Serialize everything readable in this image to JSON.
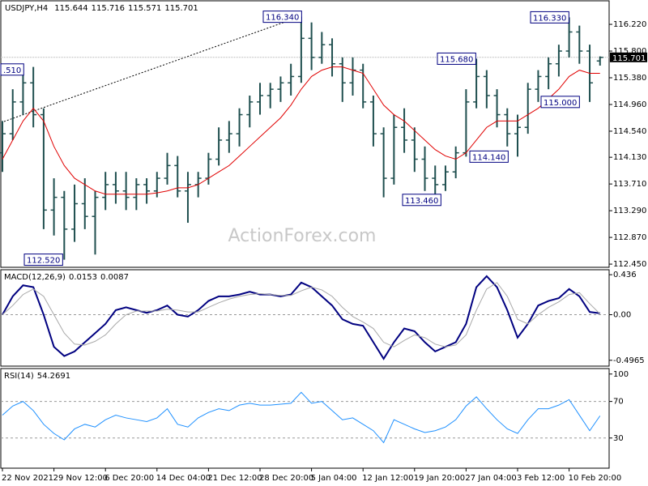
{
  "chart_data": [
    {
      "type": "ohlc",
      "symbol": "USDJPY,H4",
      "header_values": [
        115.644,
        115.716,
        115.571,
        115.701
      ],
      "watermark": "ActionForex.com",
      "color": "#1f4f4f",
      "categories": [
        "22 Nov 2021",
        null,
        null,
        null,
        null,
        "29 Nov 12:00",
        null,
        null,
        null,
        null,
        "6 Dec 20:00",
        null,
        null,
        null,
        null,
        "14 Dec 04:00",
        null,
        null,
        null,
        null,
        "21 Dec 12:00",
        null,
        null,
        null,
        null,
        "28 Dec 20:00",
        null,
        null,
        null,
        null,
        "5 Jan 04:00",
        null,
        null,
        null,
        null,
        "12 Jan 12:00",
        null,
        null,
        null,
        null,
        "19 Jan 20:00",
        null,
        null,
        null,
        null,
        "27 Jan 04:00",
        null,
        null,
        null,
        null,
        "3 Feb 12:00",
        null,
        null,
        null,
        null,
        "10 Feb 20:00",
        null,
        null,
        null
      ],
      "open": [
        114.2,
        114.5,
        115.0,
        115.3,
        114.8,
        113.3,
        113.5,
        113.0,
        113.4,
        113.2,
        113.5,
        113.7,
        113.6,
        113.5,
        113.7,
        113.6,
        113.8,
        114.0,
        113.6,
        113.7,
        113.8,
        114.1,
        114.4,
        114.5,
        114.8,
        115.0,
        115.1,
        115.2,
        115.3,
        115.4,
        116.0,
        115.7,
        115.9,
        115.6,
        115.3,
        115.5,
        115.0,
        114.5,
        113.8,
        114.6,
        114.4,
        114.1,
        113.8,
        113.7,
        113.9,
        114.2,
        115.0,
        115.4,
        115.1,
        114.8,
        114.5,
        114.6,
        115.2,
        115.4,
        115.6,
        115.8,
        116.1,
        115.8,
        115.644
      ],
      "high": [
        114.7,
        115.2,
        115.5,
        115.55,
        114.9,
        113.8,
        113.6,
        113.7,
        113.8,
        113.6,
        113.9,
        113.9,
        113.9,
        113.8,
        113.8,
        113.9,
        114.2,
        114.15,
        113.9,
        113.9,
        114.2,
        114.6,
        114.7,
        114.9,
        115.1,
        115.3,
        115.3,
        115.4,
        115.6,
        116.34,
        116.25,
        116.1,
        116.0,
        115.7,
        115.7,
        115.6,
        115.1,
        114.6,
        114.8,
        114.9,
        114.6,
        114.3,
        114.0,
        114.0,
        114.3,
        115.2,
        115.68,
        115.5,
        115.2,
        114.9,
        114.8,
        115.3,
        115.5,
        115.7,
        115.9,
        116.33,
        116.2,
        115.9,
        115.716
      ],
      "low": [
        113.9,
        114.4,
        114.8,
        114.6,
        113.0,
        112.9,
        112.52,
        112.8,
        113.0,
        112.6,
        113.3,
        113.4,
        113.3,
        113.3,
        113.4,
        113.5,
        113.7,
        113.5,
        113.1,
        113.5,
        113.7,
        114.0,
        114.2,
        114.3,
        114.6,
        114.8,
        114.9,
        115.0,
        115.1,
        115.3,
        115.5,
        115.6,
        115.4,
        115.0,
        115.1,
        114.9,
        114.3,
        113.5,
        113.7,
        114.2,
        113.9,
        113.6,
        113.46,
        113.6,
        113.8,
        114.14,
        114.9,
        114.9,
        114.6,
        114.3,
        114.14,
        114.5,
        115.0,
        115.2,
        115.4,
        115.7,
        115.6,
        115.0,
        115.571
      ],
      "close": [
        114.5,
        115.0,
        115.3,
        114.8,
        113.3,
        113.5,
        113.0,
        113.4,
        113.2,
        113.5,
        113.7,
        113.6,
        113.5,
        113.7,
        113.6,
        113.8,
        114.0,
        113.6,
        113.7,
        113.8,
        114.1,
        114.4,
        114.5,
        114.8,
        115.0,
        115.1,
        115.2,
        115.3,
        115.4,
        116.0,
        115.7,
        115.9,
        115.6,
        115.3,
        115.5,
        115.0,
        114.5,
        113.8,
        114.6,
        114.4,
        114.1,
        113.8,
        113.7,
        113.9,
        114.2,
        115.0,
        115.4,
        115.1,
        114.8,
        114.5,
        114.6,
        115.2,
        115.4,
        115.6,
        115.8,
        116.1,
        115.8,
        115.3,
        115.701
      ],
      "ma": {
        "color": "#e00000",
        "values": [
          114.1,
          114.4,
          114.7,
          114.9,
          114.7,
          114.3,
          114.0,
          113.8,
          113.7,
          113.6,
          113.55,
          113.55,
          113.55,
          113.55,
          113.55,
          113.57,
          113.6,
          113.65,
          113.65,
          113.7,
          113.8,
          113.9,
          114.0,
          114.15,
          114.3,
          114.45,
          114.6,
          114.75,
          114.95,
          115.2,
          115.4,
          115.5,
          115.55,
          115.55,
          115.5,
          115.45,
          115.2,
          114.95,
          114.8,
          114.7,
          114.55,
          114.4,
          114.25,
          114.15,
          114.1,
          114.2,
          114.4,
          114.6,
          114.7,
          114.7,
          114.7,
          114.8,
          114.9,
          115.05,
          115.2,
          115.4,
          115.5,
          115.45,
          115.45
        ]
      },
      "ylim": [
        112.4,
        116.59
      ],
      "yticks": [
        {
          "value": 116.22,
          "label": "116.220"
        },
        {
          "value": 115.8,
          "label": "115.800"
        },
        {
          "value": 115.38,
          "label": "115.380"
        },
        {
          "value": 114.96,
          "label": "114.960"
        },
        {
          "value": 114.54,
          "label": "114.540"
        },
        {
          "value": 114.13,
          "label": "114.130"
        },
        {
          "value": 113.71,
          "label": "113.710"
        },
        {
          "value": 113.29,
          "label": "113.290"
        },
        {
          "value": 112.87,
          "label": "112.870"
        },
        {
          "value": 112.45,
          "label": "112.450"
        }
      ],
      "annotations": [
        {
          "value": 116.34,
          "label": "116.340"
        },
        {
          "value": 116.33,
          "label": "116.330"
        },
        {
          "value": 115.68,
          "label": "115.680"
        },
        {
          "value": 115.0,
          "label": "115.000"
        },
        {
          "value": 114.14,
          "label": "114.140"
        },
        {
          "value": 113.46,
          "label": "113.460"
        },
        {
          "value": 112.52,
          "label": "112.520"
        },
        {
          "value": 115.51,
          "label": ".510"
        }
      ],
      "current_price": {
        "value": 115.701,
        "label": "115.701"
      },
      "grid": false
    },
    {
      "type": "line",
      "title": "MACD(12,26,9)",
      "header_values": [
        0.0153,
        0.0087
      ],
      "series": [
        {
          "color": "#000080",
          "values": [
            0.0,
            0.2,
            0.32,
            0.3,
            0.0,
            -0.35,
            -0.45,
            -0.4,
            -0.3,
            -0.2,
            -0.1,
            0.05,
            0.08,
            0.05,
            0.02,
            0.05,
            0.1,
            0.0,
            -0.02,
            0.05,
            0.15,
            0.2,
            0.2,
            0.22,
            0.25,
            0.22,
            0.22,
            0.2,
            0.22,
            0.35,
            0.3,
            0.2,
            0.1,
            -0.05,
            -0.1,
            -0.12,
            -0.3,
            -0.48,
            -0.3,
            -0.15,
            -0.18,
            -0.3,
            -0.4,
            -0.35,
            -0.3,
            -0.1,
            0.3,
            0.42,
            0.3,
            0.05,
            -0.25,
            -0.1,
            0.1,
            0.15,
            0.18,
            0.28,
            0.2,
            0.03,
            0.0153
          ]
        },
        {
          "color": "#a8a8a8",
          "values": [
            0.0,
            0.1,
            0.22,
            0.28,
            0.2,
            0.0,
            -0.2,
            -0.32,
            -0.33,
            -0.29,
            -0.22,
            -0.1,
            0.0,
            0.04,
            0.04,
            0.04,
            0.06,
            0.05,
            0.03,
            0.03,
            0.08,
            0.13,
            0.17,
            0.2,
            0.22,
            0.23,
            0.22,
            0.21,
            0.21,
            0.26,
            0.3,
            0.27,
            0.2,
            0.08,
            -0.02,
            -0.08,
            -0.15,
            -0.3,
            -0.35,
            -0.28,
            -0.22,
            -0.25,
            -0.32,
            -0.35,
            -0.33,
            -0.22,
            0.05,
            0.28,
            0.35,
            0.2,
            -0.05,
            -0.1,
            0.0,
            0.08,
            0.14,
            0.22,
            0.24,
            0.12,
            0.0087
          ]
        }
      ],
      "ylim": [
        -0.56,
        0.49
      ],
      "yticks": [
        0.436,
        {
          "value": 0,
          "label": "0.00"
        },
        -0.4965
      ],
      "levels": [
        0
      ]
    },
    {
      "type": "line",
      "title": "RSI(14)",
      "header_values": [
        54.2691
      ],
      "series": [
        {
          "color": "#1e90ff",
          "values": [
            55,
            65,
            70,
            60,
            45,
            35,
            28,
            40,
            45,
            42,
            50,
            55,
            52,
            50,
            48,
            52,
            62,
            45,
            42,
            52,
            58,
            62,
            60,
            66,
            68,
            66,
            66,
            67,
            68,
            80,
            68,
            70,
            60,
            50,
            52,
            45,
            38,
            25,
            50,
            45,
            40,
            36,
            38,
            42,
            50,
            65,
            75,
            62,
            50,
            40,
            35,
            50,
            62,
            62,
            66,
            72,
            55,
            38,
            54.2691
          ]
        }
      ],
      "ylim": [
        -3,
        106
      ],
      "yticks": [
        100,
        70,
        30
      ],
      "levels": [
        70,
        30
      ]
    }
  ]
}
